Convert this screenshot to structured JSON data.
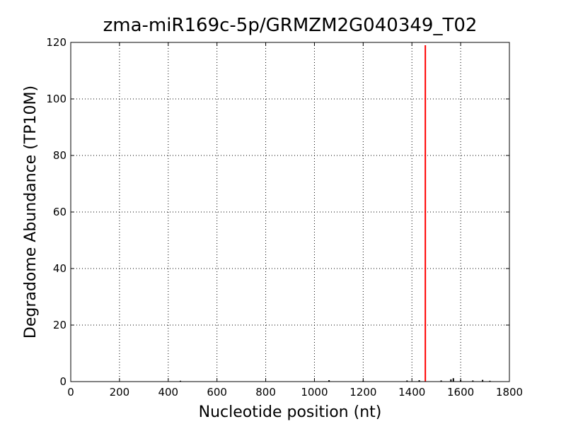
{
  "chart_data": {
    "type": "stem",
    "title": "zma-miR169c-5p/GRMZM2G040349_T02",
    "x_label": "Nucleotide position (nt)",
    "y_label": "Degradome Abundance (TP10M)",
    "xlim": [
      0,
      1800
    ],
    "xticks": [
      0,
      200,
      400,
      600,
      800,
      1000,
      1200,
      1400,
      1600,
      1800
    ],
    "ylim": [
      0,
      120
    ],
    "yticks": [
      0,
      20,
      40,
      60,
      80,
      100,
      120
    ],
    "grid": true,
    "series": [
      {
        "color": "#000000",
        "x": [
          450,
          1060,
          1200,
          1380,
          1430,
          1520,
          1560,
          1570,
          1600,
          1650,
          1690,
          1720
        ],
        "values": [
          0.3,
          0.5,
          0.3,
          0.4,
          0.5,
          0.4,
          0.8,
          1.2,
          0.5,
          0.4,
          0.6,
          0.3
        ]
      },
      {
        "color": "#ff0000",
        "x": [
          1455
        ],
        "values": [
          119
        ]
      }
    ]
  }
}
